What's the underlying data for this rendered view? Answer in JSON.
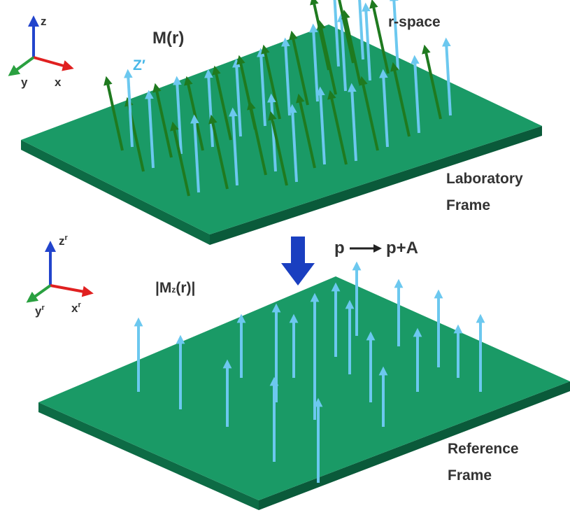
{
  "laboratory": {
    "axes": {
      "z": "z",
      "y": "y",
      "x": "x"
    },
    "magnetization_label": "M(r)",
    "local_axis_label": "Z′",
    "space_label": "r-space",
    "frame_label": [
      "Laboratory",
      "Frame"
    ]
  },
  "transformation": {
    "from": "p",
    "to": "p+A"
  },
  "reference": {
    "axes": {
      "z": {
        "base": "z",
        "sup": "r"
      },
      "y": {
        "base": "y",
        "sup": "r"
      },
      "x": {
        "base": "x",
        "sup": "r"
      }
    },
    "magnitude_label": {
      "main": "|M",
      "sub": "z",
      "rest": "(r)|"
    },
    "frame_label": [
      "Reference",
      "Frame"
    ]
  }
}
